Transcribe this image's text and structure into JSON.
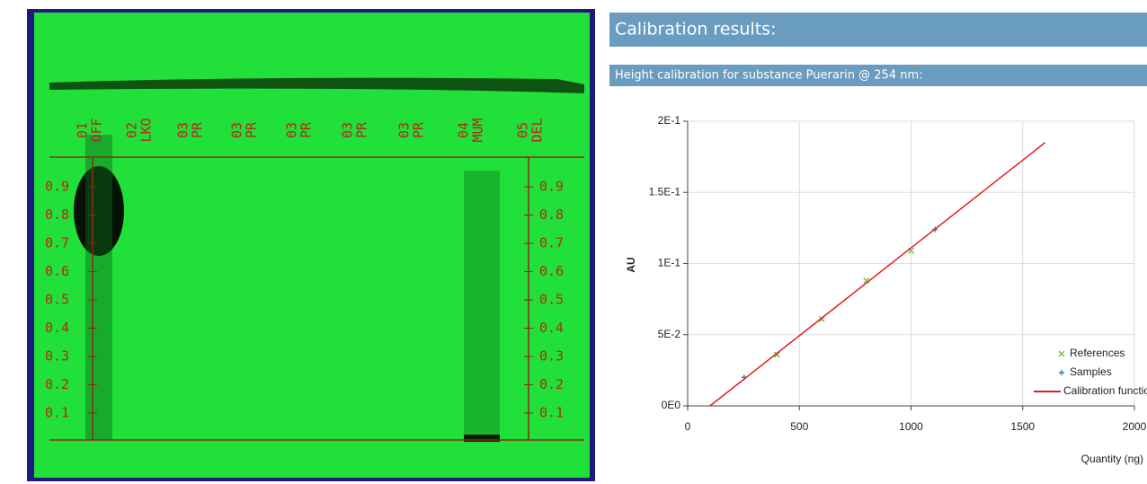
{
  "plate": {
    "lanes": [
      {
        "number": "01",
        "label": "OFF"
      },
      {
        "number": "02",
        "label": "LKO"
      },
      {
        "number": "03",
        "label": "PR"
      },
      {
        "number": "03",
        "label": "PR"
      },
      {
        "number": "03",
        "label": "PR"
      },
      {
        "number": "03",
        "label": "PR"
      },
      {
        "number": "03",
        "label": "PR"
      },
      {
        "number": "04",
        "label": "MUM"
      },
      {
        "number": "05",
        "label": "DEL"
      }
    ],
    "rf_ticks": [
      0.9,
      0.8,
      0.7,
      0.6,
      0.5,
      0.4,
      0.3,
      0.2,
      0.1
    ]
  },
  "header": {
    "title": "Calibration results:",
    "subtitle": "Height calibration for substance Puerarin @ 254 nm:"
  },
  "chart_data": {
    "type": "scatter",
    "x_label": "Quantity (ng)",
    "y_label": "AU",
    "xlim": [
      0,
      2000
    ],
    "xticks": [
      0,
      500,
      1000,
      1500,
      2000
    ],
    "ylim": [
      0,
      0.2
    ],
    "yticks": [
      {
        "value": 0,
        "label": "0E0"
      },
      {
        "value": 0.05,
        "label": "5E-2"
      },
      {
        "value": 0.1,
        "label": "1E-1"
      },
      {
        "value": 0.15,
        "label": "1.5E-1"
      },
      {
        "value": 0.2,
        "label": "2E-1"
      }
    ],
    "grid": true,
    "legend": "lower right",
    "series": [
      {
        "name": "References",
        "color": "#7cc242",
        "marker": "x",
        "x": [
          400,
          600,
          800,
          1000
        ],
        "values": [
          0.036,
          0.061,
          0.088,
          0.109
        ]
      },
      {
        "name": "Samples",
        "color": "#3a7fd0",
        "marker": "+",
        "x": [
          253,
          1107
        ],
        "values": [
          0.02,
          0.124
        ]
      },
      {
        "name": "Calibration function",
        "color": "#e02020",
        "marker": "line",
        "x": [
          100,
          1600
        ],
        "values": [
          0,
          0.185
        ]
      }
    ]
  }
}
